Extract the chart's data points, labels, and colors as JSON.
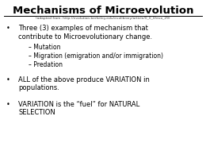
{
  "title": "Mechanisms of Microevolution",
  "subtitle": "(adapted from: http://evolution.berkeley.edu/evolibrary/article/0_0_0/evo_29)",
  "background_color": "#ffffff",
  "title_color": "#000000",
  "title_fontsize": 9.5,
  "subtitle_fontsize": 3.2,
  "bullet1": "Three (3) examples of mechanism that\ncontribute to Microevolutionary change.",
  "sub_bullets": [
    "– Mutation",
    "– Migration (emigration and/or immigration)",
    "– Predation"
  ],
  "bullet2": "ALL of the above produce VARIATION in\npopulations.",
  "bullet3": "VARIATION is the “fuel” for NATURAL\nSELECTION",
  "bullet_fontsize": 6.0,
  "sub_bullet_fontsize": 5.5,
  "bullet3_fontsize": 6.0
}
